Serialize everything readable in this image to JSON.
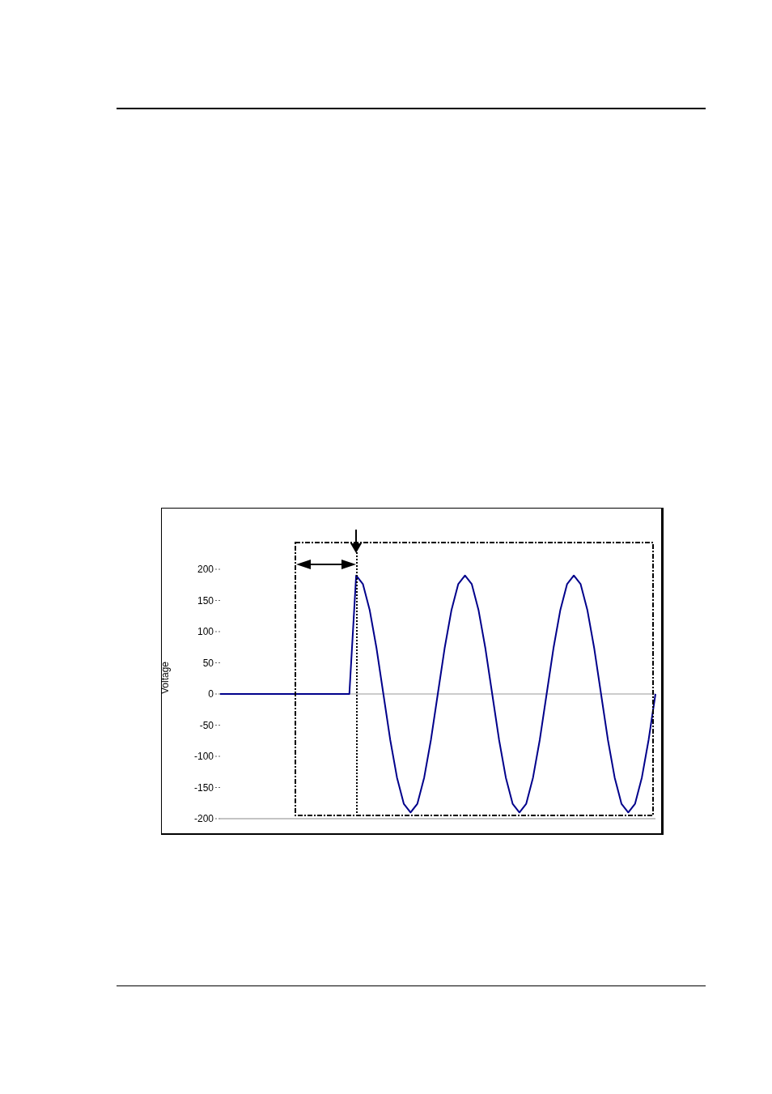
{
  "chart_data": {
    "type": "line",
    "ylabel": "Voltage",
    "categories": [
      null,
      null,
      null,
      null,
      null,
      null,
      null,
      null,
      null,
      null,
      null,
      null,
      null,
      null,
      null,
      null,
      null,
      null,
      null,
      null,
      null,
      null,
      null,
      null,
      null,
      null,
      null,
      null,
      null,
      null,
      null,
      null,
      null,
      null,
      null,
      null,
      null,
      null,
      null,
      null,
      null,
      null,
      null,
      null,
      null,
      null,
      null,
      null,
      null,
      null,
      null,
      null,
      null,
      null,
      null,
      null,
      null,
      null,
      null,
      null,
      null,
      null,
      null,
      null,
      null
    ],
    "series": [
      {
        "color": "#00008b",
        "values": [
          0,
          0,
          0,
          0,
          0,
          0,
          0,
          0,
          0,
          0,
          0,
          0,
          0,
          0,
          0,
          0,
          0,
          0,
          0,
          0,
          190,
          176,
          134,
          73,
          0,
          -73,
          -134,
          -176,
          -190,
          -176,
          -134,
          -73,
          0,
          73,
          134,
          176,
          190,
          176,
          134,
          73,
          0,
          -73,
          -134,
          -176,
          -190,
          -176,
          -134,
          -73,
          0,
          73,
          134,
          176,
          190,
          176,
          134,
          73,
          0,
          -73,
          -134,
          -176,
          -190,
          -176,
          -134,
          -73,
          0
        ]
      }
    ],
    "ylim": [
      -200,
      200
    ],
    "yticks": [
      -200,
      -150,
      -100,
      -50,
      0,
      50,
      100,
      150,
      200
    ],
    "marker": "none",
    "line_style": "solid",
    "grid": false,
    "legend": false,
    "ref_lines": [
      {
        "axis": "y",
        "value": 0,
        "color": "#999999"
      }
    ]
  }
}
